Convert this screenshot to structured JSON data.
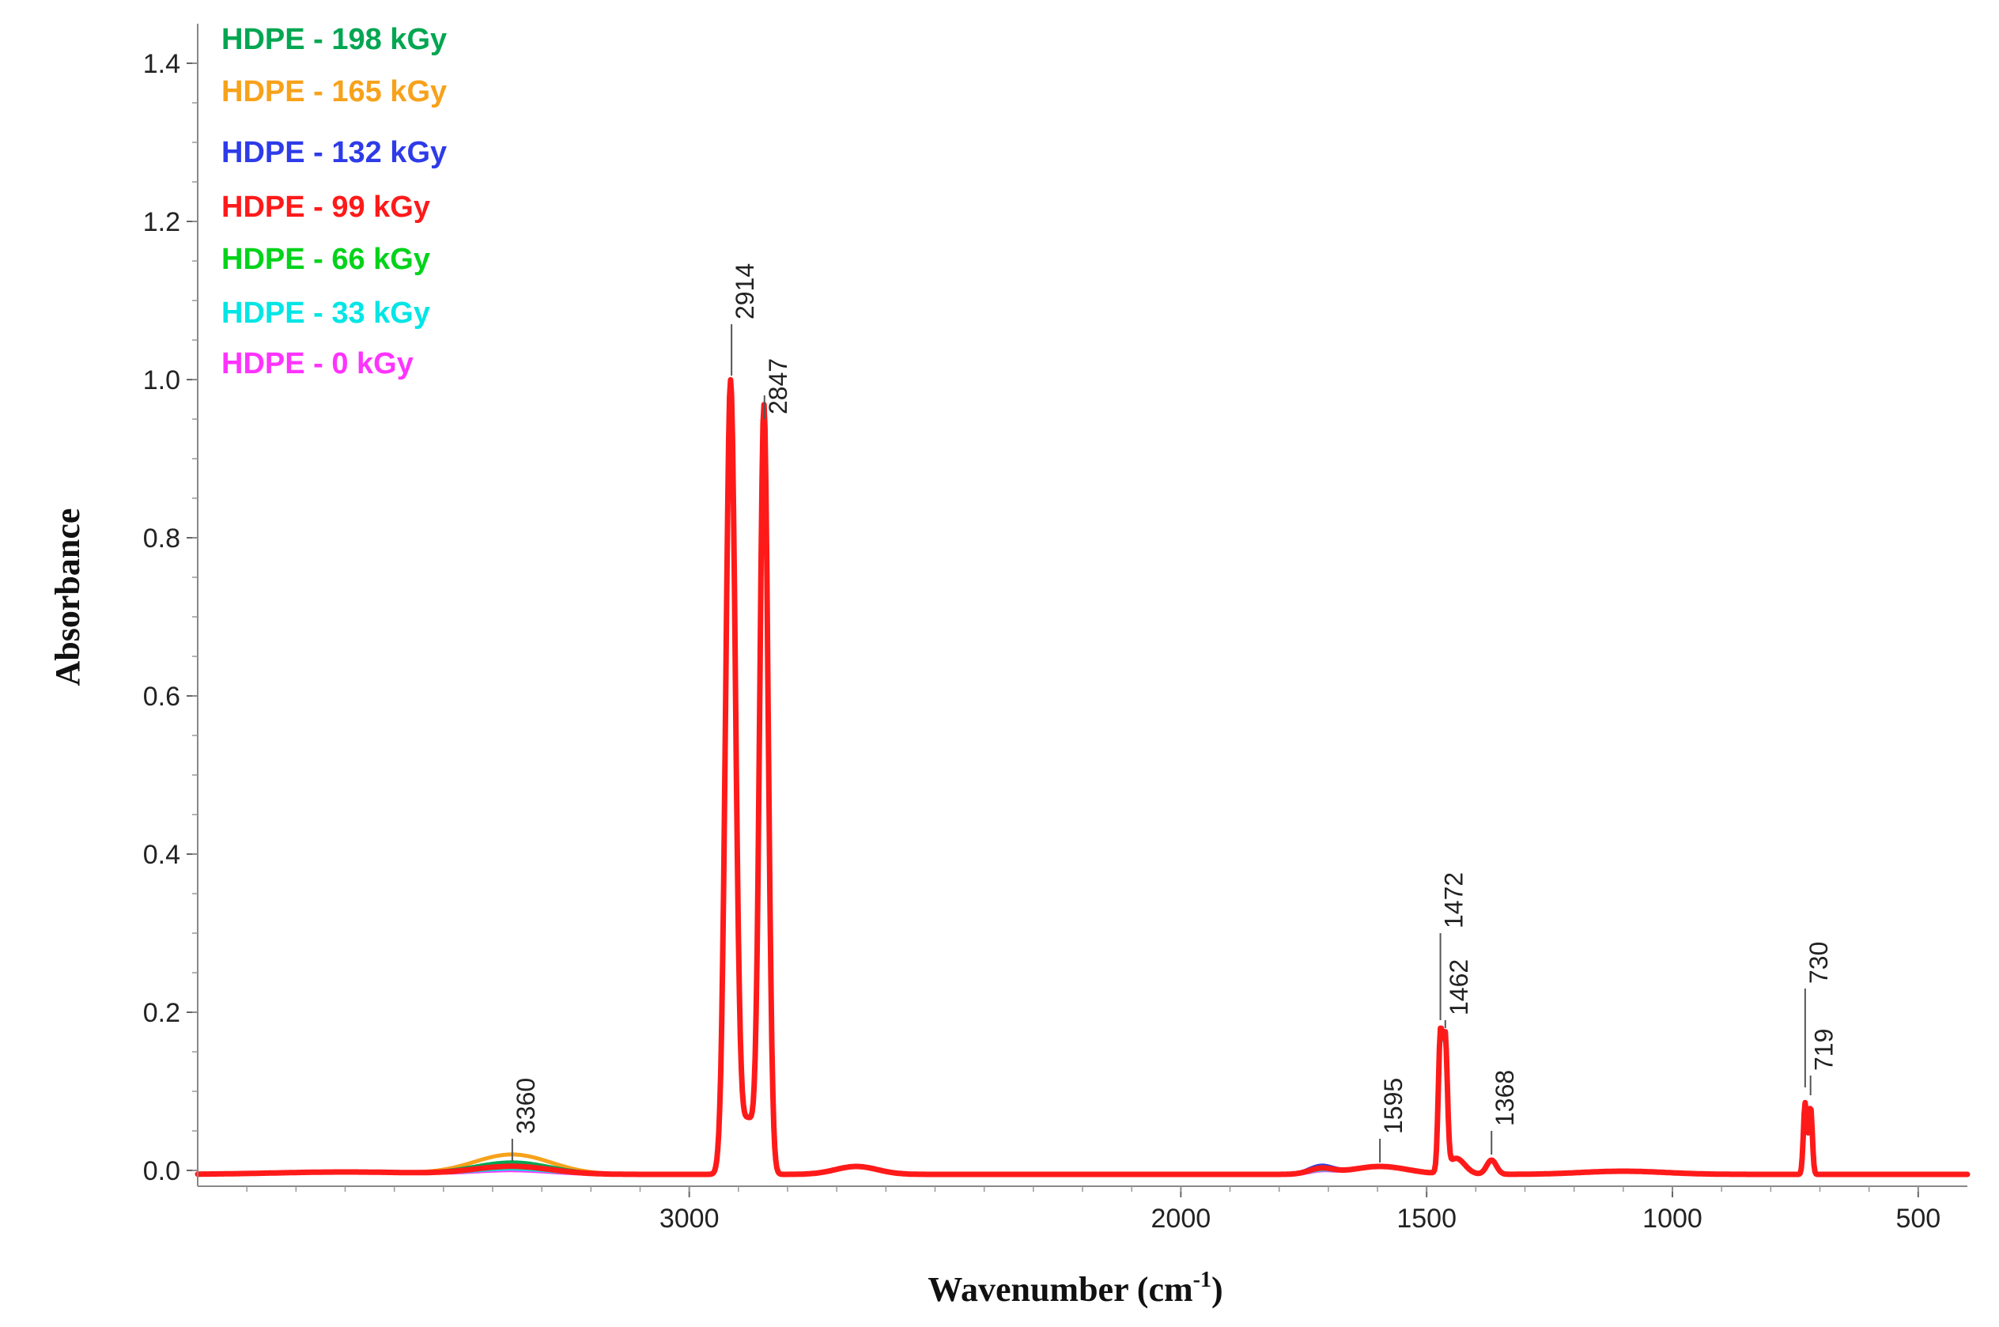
{
  "chart_data": {
    "type": "line",
    "title": "",
    "xlabel": "Wavenumber (cm",
    "xlabel_sup": "-1",
    "xlabel_close": ")",
    "ylabel": "Absorbance",
    "xlim": [
      4000,
      400
    ],
    "ylim": [
      -0.02,
      1.45
    ],
    "x_ticks": [
      3000,
      2000,
      1500,
      1000,
      500
    ],
    "y_ticks": [
      0.0,
      0.2,
      0.4,
      0.6,
      0.8,
      1.0,
      1.2,
      1.4
    ],
    "y_tick_labels": [
      "0.0",
      "0.2",
      "0.4",
      "0.6",
      "0.8",
      "1.0",
      "1.2",
      "1.4"
    ],
    "legend_position": "top-left",
    "series": [
      {
        "name": "HDPE - 198 kGy",
        "color": "#00A651",
        "oh_band": 0.01,
        "c_o_band": 0.004,
        "scale": 1.0
      },
      {
        "name": "HDPE - 165 kGy",
        "color": "#F7A21B",
        "oh_band": 0.02,
        "c_o_band": 0.003,
        "scale": 0.99
      },
      {
        "name": "HDPE - 132 kGy",
        "color": "#2E3BE8",
        "oh_band": 0.008,
        "c_o_band": 0.006,
        "scale": 0.99
      },
      {
        "name": "HDPE - 99 kGy",
        "color": "#FF1A1A",
        "oh_band": 0.005,
        "c_o_band": 0.003,
        "scale": 1.0
      },
      {
        "name": "HDPE - 66 kGy",
        "color": "#00D31A",
        "oh_band": 0.004,
        "c_o_band": 0.002,
        "scale": 0.99
      },
      {
        "name": "HDPE - 33 kGy",
        "color": "#00E5E5",
        "oh_band": 0.002,
        "c_o_band": 0.001,
        "scale": 0.98
      },
      {
        "name": "HDPE - 0 kGy",
        "color": "#FF33FF",
        "oh_band": 0.0,
        "c_o_band": 0.0,
        "scale": 0.98
      }
    ],
    "peaks": [
      {
        "x": 2914,
        "y": 1.005,
        "label": "2914"
      },
      {
        "x": 2847,
        "y": 0.98,
        "label": "2847"
      },
      {
        "x": 1472,
        "y": 0.19,
        "label": "1472"
      },
      {
        "x": 1462,
        "y": 0.18,
        "label": "1462"
      },
      {
        "x": 1368,
        "y": 0.02,
        "label": "1368"
      },
      {
        "x": 1595,
        "y": 0.01,
        "label": "1595"
      },
      {
        "x": 730,
        "y": 0.105,
        "label": "730"
      },
      {
        "x": 719,
        "y": 0.095,
        "label": "719"
      },
      {
        "x": 3360,
        "y": 0.012,
        "label": "3360"
      }
    ]
  }
}
